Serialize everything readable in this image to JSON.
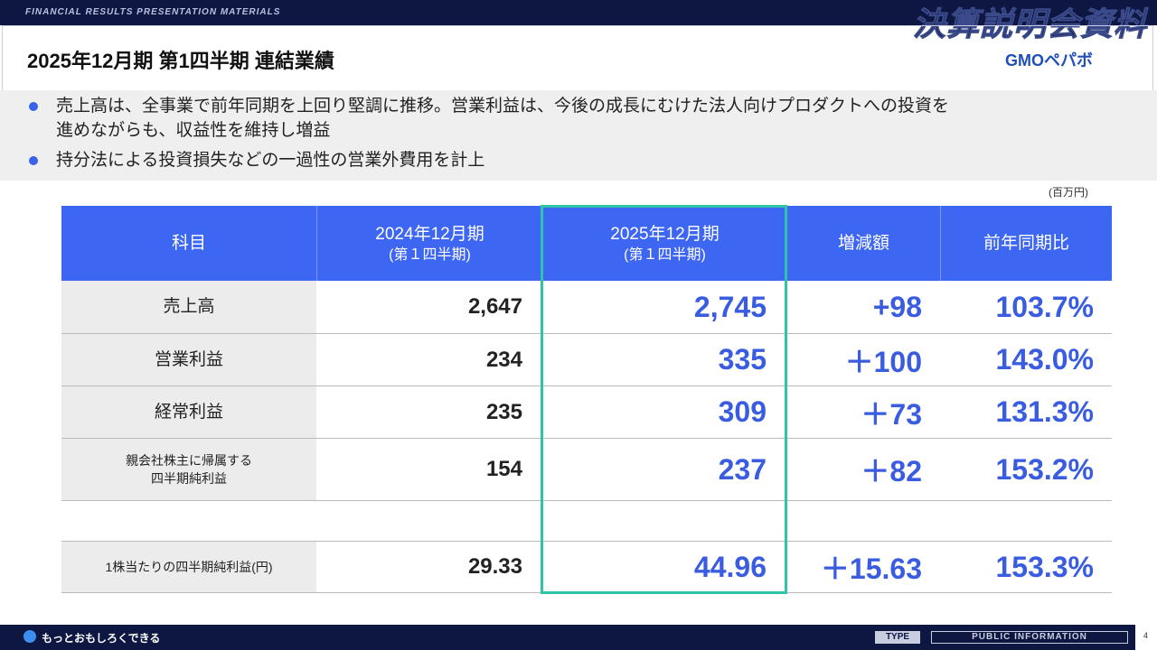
{
  "header": {
    "tagline": "FINANCIAL RESULTS PRESENTATION MATERIALS",
    "banner": "決算説明会資料",
    "title": "2025年12月期 第1四半期 連結業績",
    "logo": "GMOペパボ"
  },
  "bullets": [
    [
      "売上高は、全事業で前年同期を上回り堅調に推移。営業利益は、今後の成長にむけた法人向けプロダクトへの投資を",
      "進めながらも、収益性を維持し増益"
    ],
    [
      "持分法による投資損失などの一過性の営業外費用を計上"
    ]
  ],
  "unit": "(百万円)",
  "table": {
    "columns": [
      [
        "科目"
      ],
      [
        "2024年12月期",
        "(第１四半期)"
      ],
      [
        "2025年12月期",
        "(第１四半期)"
      ],
      [
        "増減額"
      ],
      [
        "前年同期比"
      ]
    ],
    "rows": [
      {
        "label": [
          "売上高"
        ],
        "cells": [
          "2,647",
          "2,745",
          "+98",
          "103.7%"
        ]
      },
      {
        "label": [
          "営業利益"
        ],
        "cells": [
          "234",
          "335",
          "＋100",
          "143.0%"
        ]
      },
      {
        "label": [
          "経常利益"
        ],
        "cells": [
          "235",
          "309",
          "＋73",
          "131.3%"
        ]
      },
      {
        "label": [
          "親会社株主に帰属する",
          "四半期純利益"
        ],
        "cells": [
          "154",
          "237",
          "＋82",
          "153.2%"
        ]
      },
      {
        "label": [
          "1株当たりの四半期純利益(円)"
        ],
        "cells": [
          "29.33",
          "44.96",
          "＋15.63",
          "153.3%"
        ]
      }
    ]
  },
  "footer": {
    "slogan": "もっとおもしろくできる",
    "type": "TYPE",
    "classification": "PUBLIC INFORMATION",
    "page": "4"
  }
}
